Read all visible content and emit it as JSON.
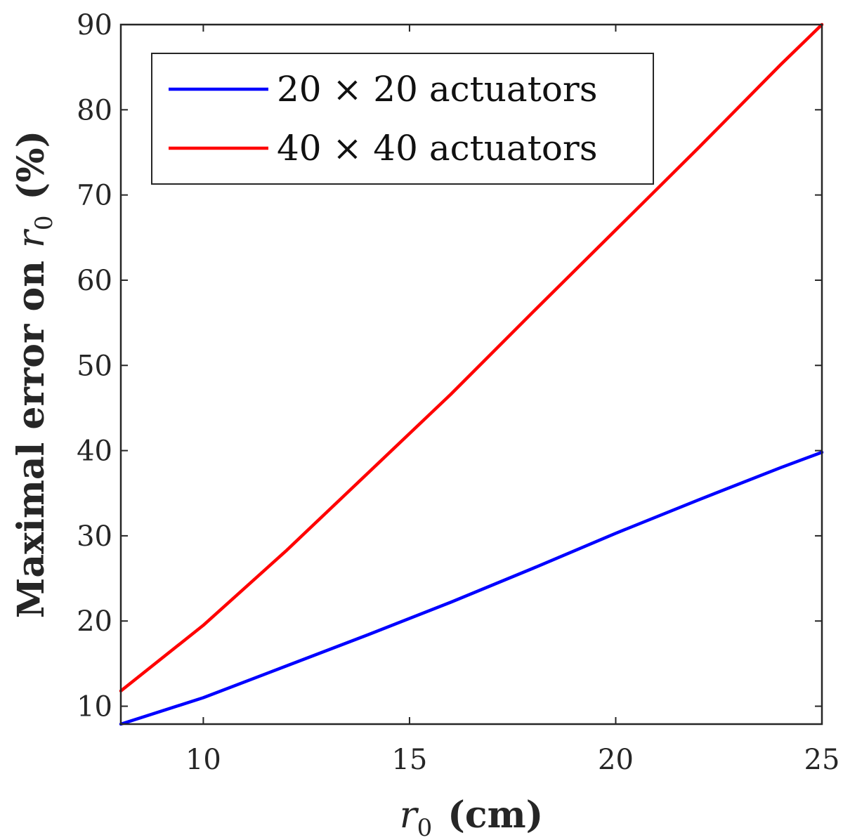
{
  "chart_data": {
    "type": "line",
    "title": "",
    "xlabel": {
      "var": "r",
      "sub": "0",
      "unit": "(cm)"
    },
    "ylabel": {
      "prefix": "Maximal error on ",
      "var": "r",
      "sub": "0",
      "unit": "(%)"
    },
    "xlim": [
      8,
      25
    ],
    "ylim": [
      7.9,
      90
    ],
    "xticks": [
      10,
      15,
      20,
      25
    ],
    "yticks": [
      10,
      20,
      30,
      40,
      50,
      60,
      70,
      80,
      90
    ],
    "grid": false,
    "legend_position": "top-left",
    "series": [
      {
        "name": "20 × 20 actuators",
        "color": "#0000ff",
        "x": [
          8,
          10,
          12,
          14,
          16,
          18,
          20,
          22,
          24,
          25
        ],
        "y": [
          7.9,
          11.0,
          14.7,
          18.4,
          22.2,
          26.2,
          30.3,
          34.2,
          38.0,
          39.8
        ]
      },
      {
        "name": "40 × 40 actuators",
        "color": "#ff0000",
        "x": [
          8,
          10,
          12,
          14,
          16,
          18,
          20,
          22,
          24,
          25
        ],
        "y": [
          11.8,
          19.5,
          28.2,
          37.4,
          46.6,
          56.3,
          65.9,
          75.5,
          85.3,
          90.0
        ]
      }
    ]
  }
}
